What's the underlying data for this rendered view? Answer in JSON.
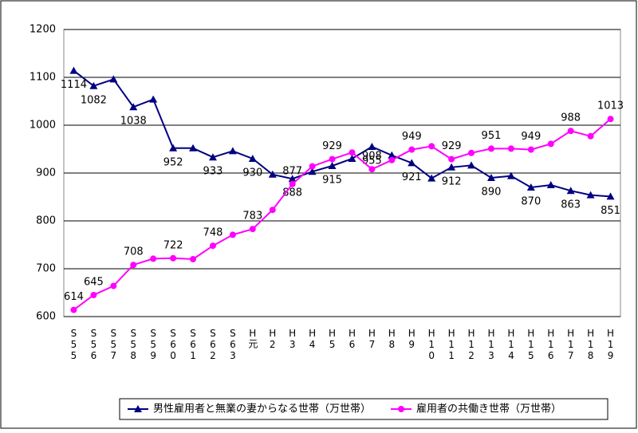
{
  "chart_data": {
    "type": "line",
    "categories": [
      "S55",
      "S56",
      "S57",
      "S58",
      "S59",
      "S60",
      "S61",
      "S62",
      "S63",
      "H元",
      "H2",
      "H3",
      "H4",
      "H5",
      "H6",
      "H7",
      "H8",
      "H9",
      "H10",
      "H11",
      "H12",
      "H13",
      "H14",
      "H15",
      "H16",
      "H17",
      "H18",
      "H19"
    ],
    "series": [
      {
        "name": "男性雇用者と無業の妻からなる世帯（万世帯）",
        "color": "#000080",
        "marker": "triangle",
        "values": [
          1114,
          1082,
          1096,
          1038,
          1054,
          952,
          952,
          933,
          946,
          930,
          897,
          888,
          903,
          915,
          930,
          955,
          937,
          921,
          889,
          912,
          916,
          890,
          894,
          870,
          875,
          863,
          854,
          851
        ],
        "value_labels": [
          "1114",
          "1082",
          null,
          "1038",
          null,
          "952",
          null,
          "933",
          null,
          "930",
          null,
          "888",
          null,
          "915",
          null,
          "955",
          null,
          "921",
          null,
          "912",
          null,
          "890",
          null,
          "870",
          null,
          "863",
          null,
          "851"
        ]
      },
      {
        "name": "雇用者の共働き世帯（万世帯）",
        "color": "#ff00ff",
        "marker": "circle",
        "values": [
          614,
          645,
          664,
          708,
          721,
          722,
          720,
          748,
          771,
          783,
          823,
          877,
          914,
          929,
          943,
          908,
          927,
          949,
          956,
          929,
          942,
          951,
          951,
          949,
          961,
          988,
          977,
          1013
        ],
        "value_labels": [
          "614",
          "645",
          null,
          "708",
          null,
          "722",
          null,
          "748",
          null,
          "783",
          null,
          "877",
          null,
          "929",
          null,
          "908",
          null,
          "949",
          null,
          "929",
          null,
          "951",
          null,
          "949",
          null,
          "988",
          null,
          "1013"
        ]
      }
    ],
    "ylim": [
      600,
      1200
    ],
    "yticks": [
      600,
      700,
      800,
      900,
      1000,
      1100,
      1200
    ],
    "grid": true,
    "legend": "bottom"
  }
}
